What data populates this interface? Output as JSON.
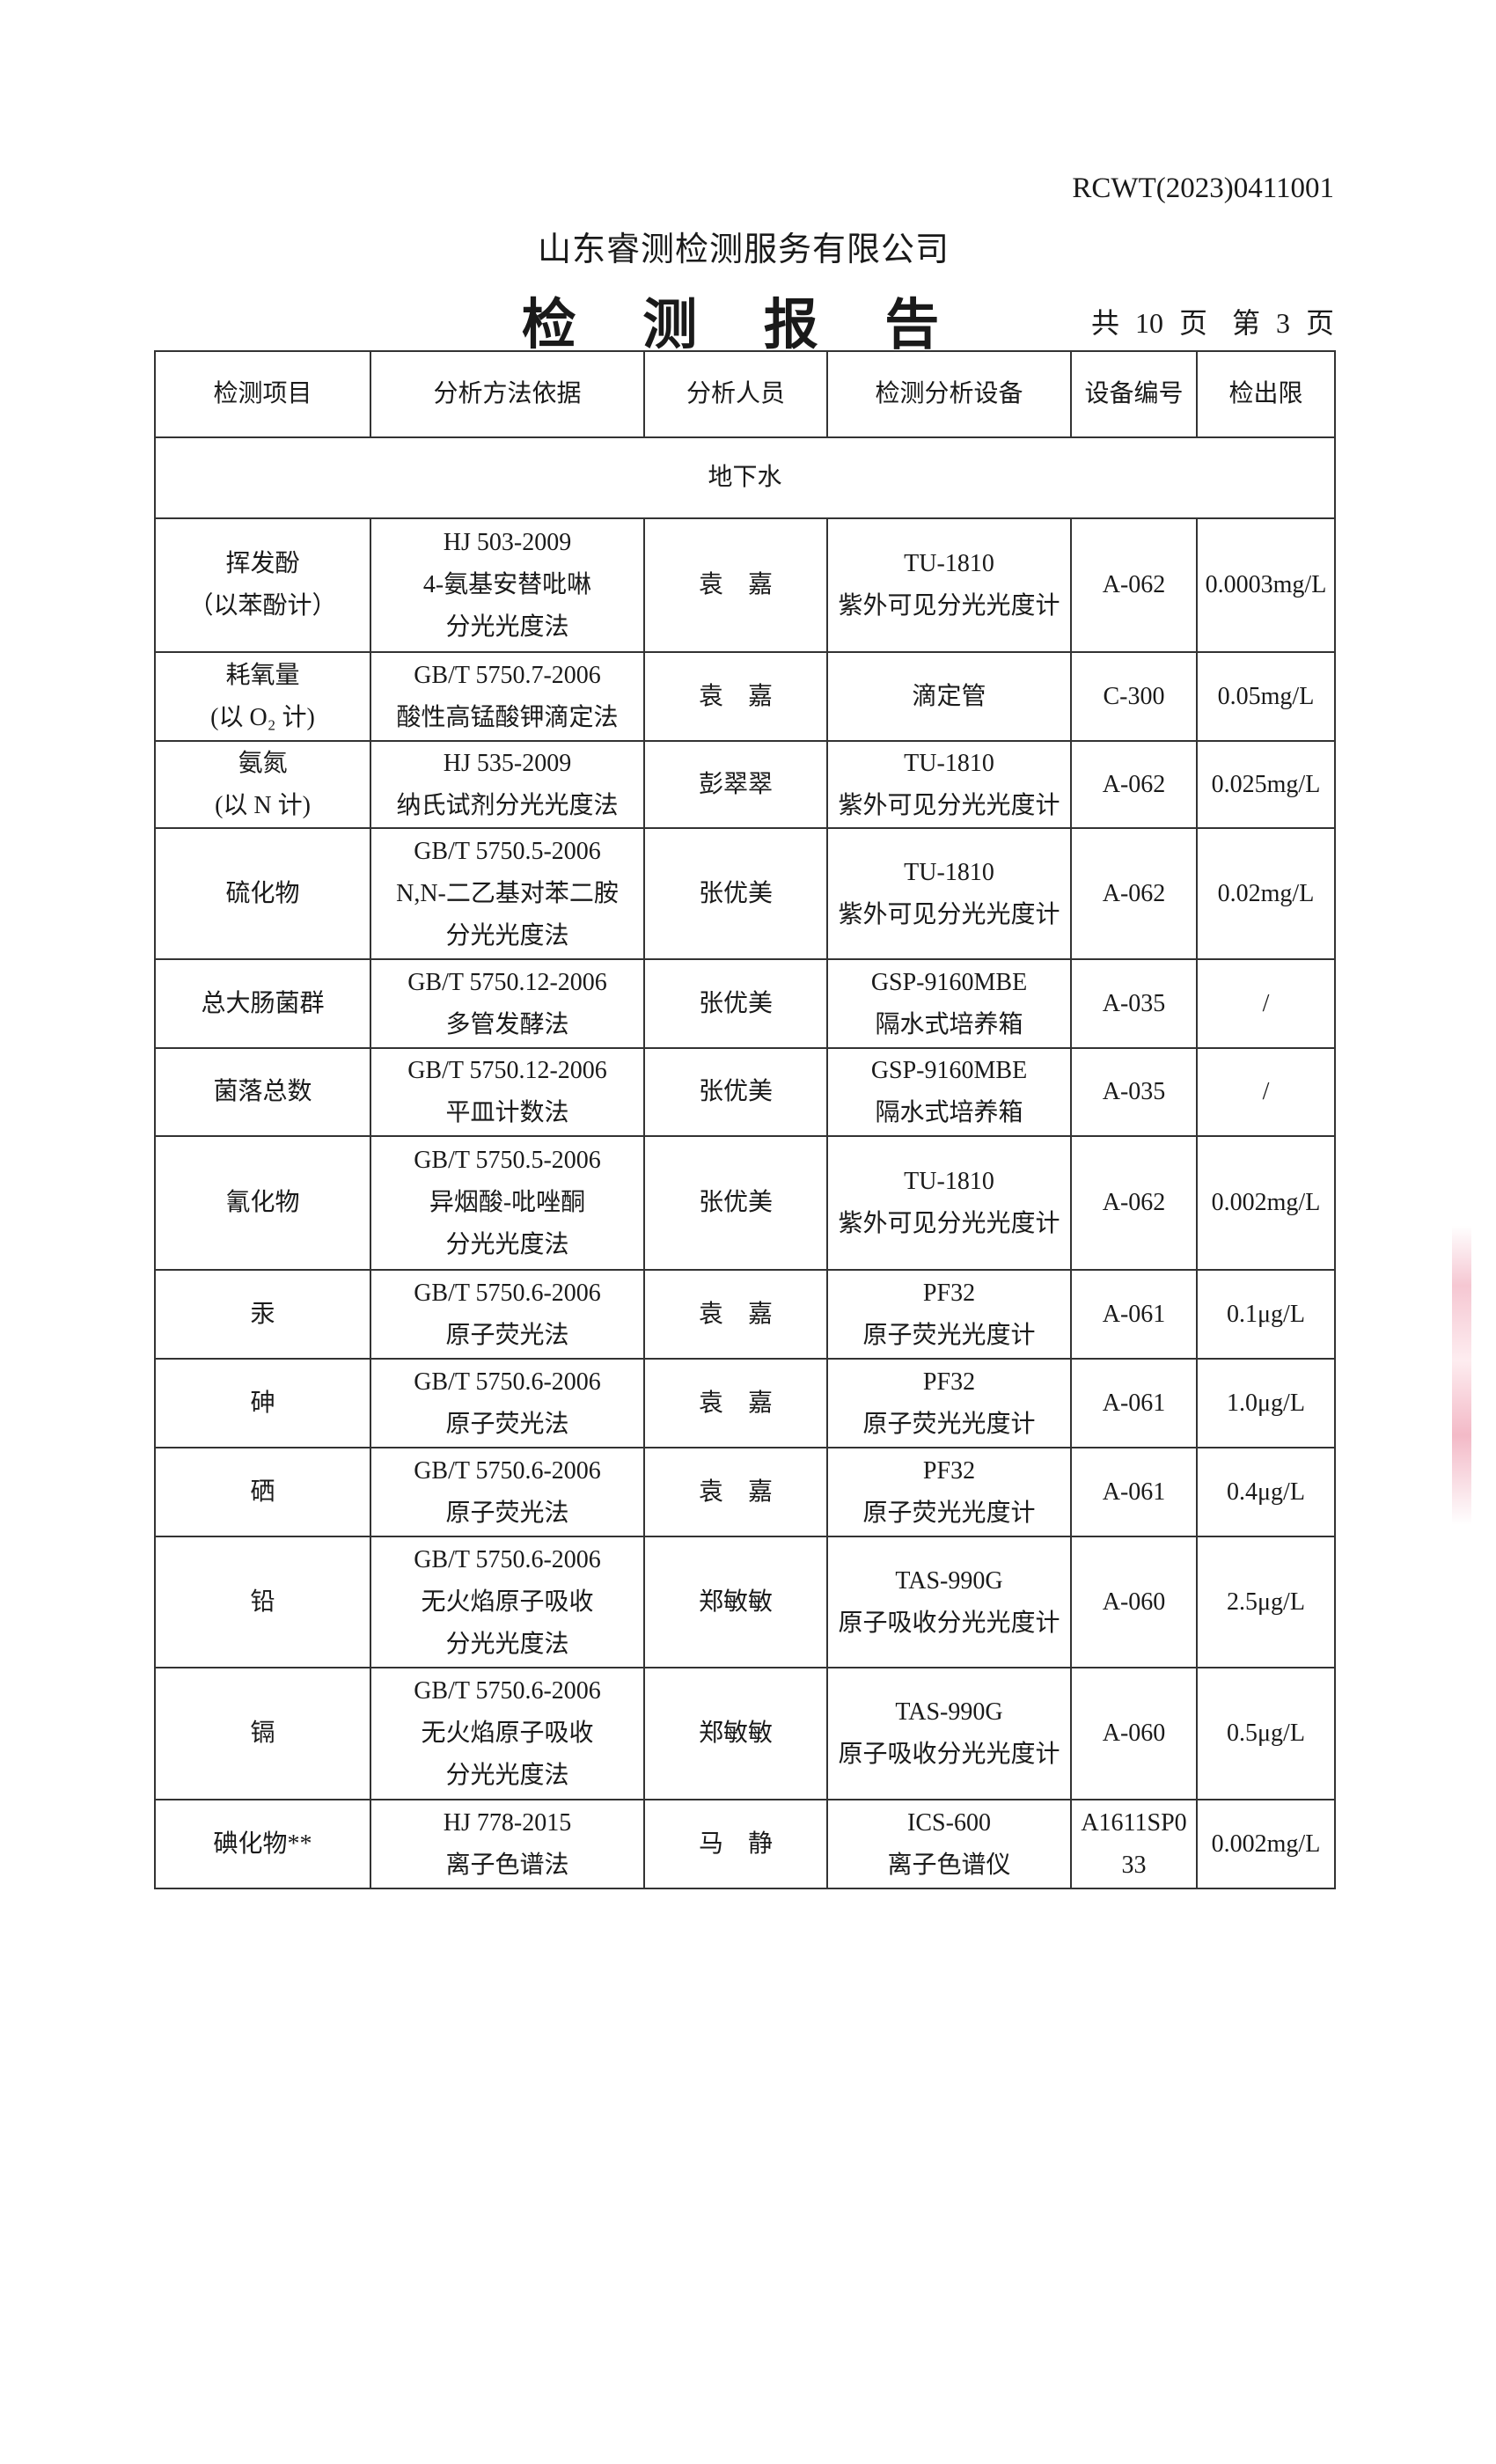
{
  "report_no": "RCWT(2023)0411001",
  "company": "山东睿测检测服务有限公司",
  "title": "检 测 报 告",
  "pages": {
    "total": "共 10 页",
    "current": "第 3 页"
  },
  "table": {
    "headers": [
      "检测项目",
      "分析方法依据",
      "分析人员",
      "检测分析设备",
      "设备编号",
      "检出限"
    ],
    "section": "地下水",
    "rows": [
      {
        "item": [
          "挥发酚",
          "（以苯酚计）"
        ],
        "method": [
          "HJ 503-2009",
          "4-氨基安替吡啉",
          "分光光度法"
        ],
        "analyst": "袁　嘉",
        "equipment": [
          "TU-1810",
          "紫外可见分光光度计"
        ],
        "equip_no": [
          "A-062"
        ],
        "limit": "0.0003mg/L"
      },
      {
        "item": [
          "耗氧量",
          "(以 O₂ 计)"
        ],
        "method": [
          "GB/T 5750.7-2006",
          "酸性高锰酸钾滴定法"
        ],
        "analyst": "袁　嘉",
        "equipment": [
          "滴定管"
        ],
        "equip_no": [
          "C-300"
        ],
        "limit": "0.05mg/L"
      },
      {
        "item": [
          "氨氮",
          "(以 N 计)"
        ],
        "method": [
          "HJ 535-2009",
          "纳氏试剂分光光度法"
        ],
        "analyst": "彭翠翠",
        "equipment": [
          "TU-1810",
          "紫外可见分光光度计"
        ],
        "equip_no": [
          "A-062"
        ],
        "limit": "0.025mg/L"
      },
      {
        "item": [
          "硫化物"
        ],
        "method": [
          "GB/T 5750.5-2006",
          "N,N-二乙基对苯二胺",
          "分光光度法"
        ],
        "analyst": "张优美",
        "equipment": [
          "TU-1810",
          "紫外可见分光光度计"
        ],
        "equip_no": [
          "A-062"
        ],
        "limit": "0.02mg/L"
      },
      {
        "item": [
          "总大肠菌群"
        ],
        "method": [
          "GB/T 5750.12-2006",
          "多管发酵法"
        ],
        "analyst": "张优美",
        "equipment": [
          "GSP-9160MBE",
          "隔水式培养箱"
        ],
        "equip_no": [
          "A-035"
        ],
        "limit": "/"
      },
      {
        "item": [
          "菌落总数"
        ],
        "method": [
          "GB/T 5750.12-2006",
          "平皿计数法"
        ],
        "analyst": "张优美",
        "equipment": [
          "GSP-9160MBE",
          "隔水式培养箱"
        ],
        "equip_no": [
          "A-035"
        ],
        "limit": "/"
      },
      {
        "item": [
          "氰化物"
        ],
        "method": [
          "GB/T 5750.5-2006",
          "异烟酸-吡唑酮",
          "分光光度法"
        ],
        "analyst": "张优美",
        "equipment": [
          "TU-1810",
          "紫外可见分光光度计"
        ],
        "equip_no": [
          "A-062"
        ],
        "limit": "0.002mg/L"
      },
      {
        "item": [
          "汞"
        ],
        "method": [
          "GB/T 5750.6-2006",
          "原子荧光法"
        ],
        "analyst": "袁　嘉",
        "equipment": [
          "PF32",
          "原子荧光光度计"
        ],
        "equip_no": [
          "A-061"
        ],
        "limit": "0.1μg/L"
      },
      {
        "item": [
          "砷"
        ],
        "method": [
          "GB/T 5750.6-2006",
          "原子荧光法"
        ],
        "analyst": "袁　嘉",
        "equipment": [
          "PF32",
          "原子荧光光度计"
        ],
        "equip_no": [
          "A-061"
        ],
        "limit": "1.0μg/L"
      },
      {
        "item": [
          "硒"
        ],
        "method": [
          "GB/T 5750.6-2006",
          "原子荧光法"
        ],
        "analyst": "袁　嘉",
        "equipment": [
          "PF32",
          "原子荧光光度计"
        ],
        "equip_no": [
          "A-061"
        ],
        "limit": "0.4μg/L"
      },
      {
        "item": [
          "铅"
        ],
        "method": [
          "GB/T 5750.6-2006",
          "无火焰原子吸收",
          "分光光度法"
        ],
        "analyst": "郑敏敏",
        "equipment": [
          "TAS-990G",
          "原子吸收分光光度计"
        ],
        "equip_no": [
          "A-060"
        ],
        "limit": "2.5μg/L"
      },
      {
        "item": [
          "镉"
        ],
        "method": [
          "GB/T 5750.6-2006",
          "无火焰原子吸收",
          "分光光度法"
        ],
        "analyst": "郑敏敏",
        "equipment": [
          "TAS-990G",
          "原子吸收分光光度计"
        ],
        "equip_no": [
          "A-060"
        ],
        "limit": "0.5μg/L"
      },
      {
        "item": [
          "碘化物**"
        ],
        "method": [
          "HJ 778-2015",
          "离子色谱法"
        ],
        "analyst": "马　静",
        "equipment": [
          "ICS-600",
          "离子色谱仪"
        ],
        "equip_no": [
          "A1611SP0",
          "33"
        ],
        "limit": "0.002mg/L"
      }
    ]
  },
  "colors": {
    "text": "#1a1a1a",
    "border": "#333333",
    "stamp": "#f0a8b9"
  }
}
